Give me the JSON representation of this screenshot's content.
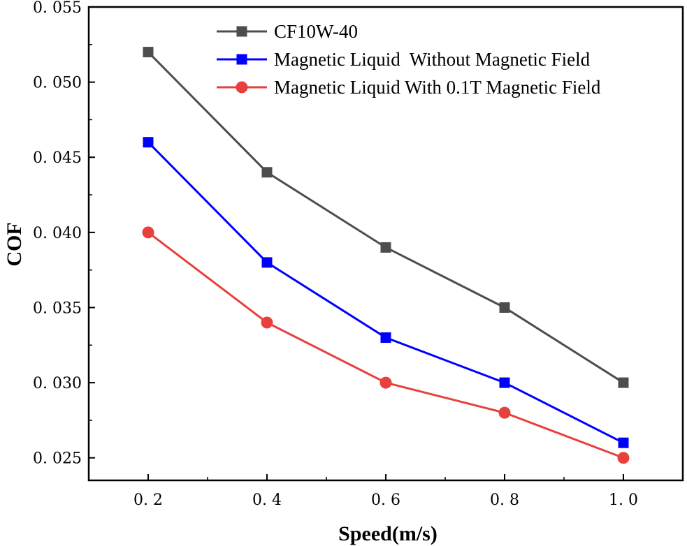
{
  "chart_data": {
    "type": "line",
    "title": "",
    "xlabel": "Speed(m/s)",
    "ylabel": "COF",
    "x": [
      0.2,
      0.4,
      0.6,
      0.8,
      1.0
    ],
    "xlim": [
      0.1,
      1.1
    ],
    "ylim": [
      0.0235,
      0.055
    ],
    "x_ticks": [
      0.2,
      0.4,
      0.6,
      0.8,
      1.0
    ],
    "x_tick_labels": [
      "0. 2",
      "0. 4",
      "0. 6",
      "0. 8",
      "1. 0"
    ],
    "y_ticks": [
      0.025,
      0.03,
      0.035,
      0.04,
      0.045,
      0.05,
      0.055
    ],
    "y_tick_labels": [
      "0. 025",
      "0. 030",
      "0. 035",
      "0. 040",
      "0. 045",
      "0. 050",
      "0. 055"
    ],
    "grid": false,
    "legend_position": "top-right",
    "series": [
      {
        "name": "CF10W-40",
        "color": "#4d4d4d",
        "marker": "square",
        "values": [
          0.052,
          0.044,
          0.039,
          0.035,
          0.03
        ]
      },
      {
        "name": "Magnetic Liquid  Without Magnetic Field",
        "color": "#0000ff",
        "marker": "square",
        "values": [
          0.046,
          0.038,
          0.033,
          0.03,
          0.026
        ]
      },
      {
        "name": "Magnetic Liquid With 0.1T Magnetic Field",
        "color": "#e8403c",
        "marker": "circle",
        "values": [
          0.04,
          0.034,
          0.03,
          0.028,
          0.025
        ]
      }
    ]
  }
}
